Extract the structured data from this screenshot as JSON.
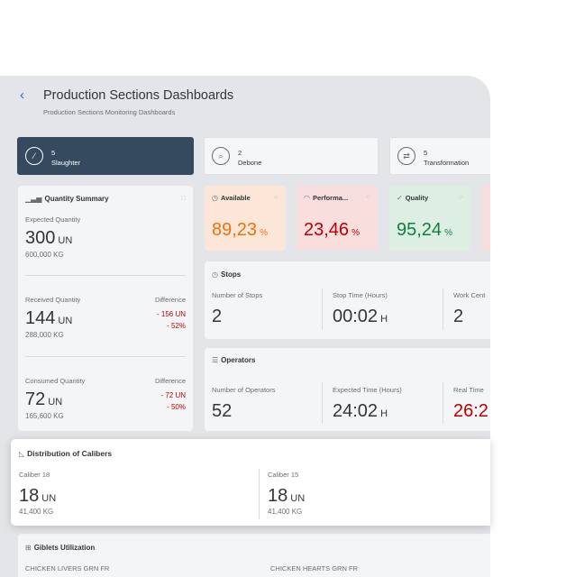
{
  "header": {
    "title": "Production Sections Dashboards",
    "subtitle": "Production Sections Monitoring Dashboards"
  },
  "sections": [
    {
      "count": "5",
      "name": "Slaughter",
      "icon": "knife-icon",
      "active": true
    },
    {
      "count": "2",
      "name": "Debone",
      "icon": "search-icon",
      "active": false
    },
    {
      "count": "5",
      "name": "Transformation",
      "icon": "transform-icon",
      "active": false
    }
  ],
  "quantity_summary": {
    "title": "Quantity Summary",
    "expected": {
      "label": "Expected Quantity",
      "value": "300",
      "unit": "UN",
      "secondary": "600,000 KG"
    },
    "received": {
      "label": "Received Quantity",
      "value": "144",
      "unit": "UN",
      "secondary": "288,000 KG",
      "diff_label": "Difference",
      "diff_qty": "- 156 UN",
      "diff_pct": "- 52%"
    },
    "consumed": {
      "label": "Consumed Quantity",
      "value": "72",
      "unit": "UN",
      "secondary": "165,600 KG",
      "diff_label": "Difference",
      "diff_qty": "- 72 UN",
      "diff_pct": "- 50%"
    }
  },
  "kpis": [
    {
      "title": "Available",
      "value": "89,23",
      "unit": "%",
      "color": "#e9730c",
      "bg": "#fbe6d7"
    },
    {
      "title": "Performa...",
      "value": "23,46",
      "unit": "%",
      "color": "#bb0000",
      "bg": "#f9dede"
    },
    {
      "title": "Quality",
      "value": "95,24",
      "unit": "%",
      "color": "#107e3e",
      "bg": "#dcefe2"
    }
  ],
  "stops": {
    "title": "Stops",
    "cols": [
      {
        "label": "Number of Stops",
        "value": "2",
        "unit": ""
      },
      {
        "label": "Stop Time (Hours)",
        "value": "00:02",
        "unit": "H"
      },
      {
        "label": "Work Cent",
        "value": "2",
        "unit": ""
      }
    ]
  },
  "operators": {
    "title": "Operators",
    "cols": [
      {
        "label": "Number of Operators",
        "value": "52",
        "unit": ""
      },
      {
        "label": "Expected Time (Hours)",
        "value": "24:02",
        "unit": "H"
      },
      {
        "label": "Real Time",
        "value": "26:2",
        "unit": ""
      }
    ]
  },
  "calibers": {
    "title": "Distribution of Calibers",
    "items": [
      {
        "label": "Caliber 18",
        "value": "18",
        "unit": "UN",
        "secondary": "41,400 KG"
      },
      {
        "label": "Caliber 15",
        "value": "18",
        "unit": "UN",
        "secondary": "41,400 KG"
      }
    ]
  },
  "giblets": {
    "title": "Giblets Utilization",
    "cols": [
      "CHICKEN LIVERS GRN FR",
      "CHICKEN HEARTS GRN FR"
    ]
  },
  "colors": {
    "accent": "#0a6ed1",
    "negative": "#bb0000",
    "positive": "#107e3e",
    "critical": "#e9730c",
    "active_tile": "#354a5f"
  }
}
